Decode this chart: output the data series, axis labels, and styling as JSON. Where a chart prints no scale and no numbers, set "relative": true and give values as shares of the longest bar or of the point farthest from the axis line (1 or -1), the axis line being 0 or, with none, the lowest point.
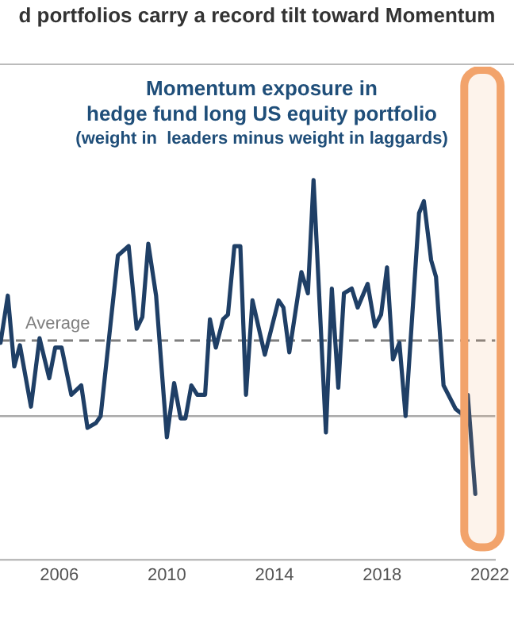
{
  "chart_data": {
    "type": "line",
    "title": "d portfolios carry a record tilt toward Momentum",
    "subtitle": "Momentum exposure in\nhedge fund long US equity portfolio\n(weight in  leaders minus weight in laggards)",
    "relative": true,
    "grid": false,
    "legend": false,
    "marker": "none",
    "line_style": "solid",
    "x": [
      2003.82,
      2004.09,
      2004.33,
      2004.54,
      2004.95,
      2005.27,
      2005.63,
      2005.85,
      2006.09,
      2006.45,
      2006.82,
      2007.05,
      2007.36,
      2007.54,
      2008.18,
      2008.58,
      2008.88,
      2009.09,
      2009.31,
      2009.6,
      2010.0,
      2010.27,
      2010.51,
      2010.69,
      2010.91,
      2011.13,
      2011.42,
      2011.6,
      2011.82,
      2012.09,
      2012.27,
      2012.51,
      2012.73,
      2012.94,
      2013.18,
      2013.64,
      2014.15,
      2014.33,
      2014.55,
      2015.0,
      2015.24,
      2015.45,
      2015.91,
      2016.13,
      2016.37,
      2016.58,
      2016.87,
      2017.09,
      2017.46,
      2017.73,
      2017.96,
      2018.18,
      2018.4,
      2018.64,
      2018.87,
      2019.37,
      2019.55,
      2019.82,
      2020.0,
      2020.28,
      2020.73,
      2020.95,
      2021.18,
      2021.46
    ],
    "xlim": [
      2003.8,
      2022.2
    ],
    "xticks": [
      2006,
      2010,
      2014,
      2018,
      2022
    ],
    "series": [
      {
        "color": "#1f3f66",
        "values": [
          0.31,
          0.51,
          0.21,
          0.3,
          0.04,
          0.33,
          0.16,
          0.29,
          0.29,
          0.09,
          0.13,
          -0.05,
          -0.03,
          0.0,
          0.68,
          0.72,
          0.37,
          0.42,
          0.73,
          0.51,
          -0.09,
          0.14,
          -0.01,
          -0.01,
          0.13,
          0.09,
          0.09,
          0.41,
          0.29,
          0.41,
          0.43,
          0.72,
          0.72,
          0.09,
          0.49,
          0.26,
          0.49,
          0.46,
          0.27,
          0.61,
          0.52,
          1.0,
          -0.07,
          0.54,
          0.12,
          0.52,
          0.54,
          0.46,
          0.56,
          0.38,
          0.43,
          0.63,
          0.24,
          0.31,
          0.0,
          0.86,
          0.91,
          0.66,
          0.59,
          0.13,
          0.03,
          0.01,
          0.09,
          -0.33
        ]
      }
    ],
    "ref_lines": [
      {
        "axis": "y",
        "value": 0.32,
        "label": "Average",
        "color": "#7f7f7f",
        "line_style": "dashed"
      }
    ],
    "bands": [
      {
        "axis": "x",
        "from": 2021.05,
        "to": 2022.4,
        "color": "#f2a36b"
      }
    ]
  }
}
